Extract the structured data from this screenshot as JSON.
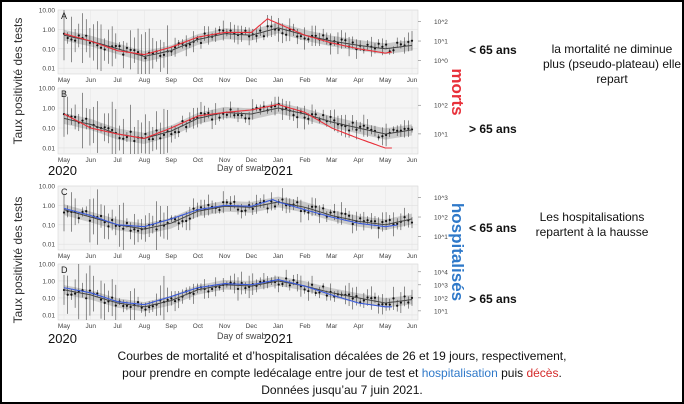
{
  "ylabel_top": "Taux positivité des tests",
  "ylabel_bottom": "Taux positivité des tests",
  "xtitle": "Day of swab",
  "years": {
    "y2020": "2020",
    "y2021": "2021"
  },
  "months": [
    "May",
    "Jun",
    "Jul",
    "Aug",
    "Sep",
    "Oct",
    "Nov",
    "Dec",
    "Jan",
    "Feb",
    "Mar",
    "Apr",
    "May",
    "Jun"
  ],
  "label_morts": "morts",
  "label_hosp": "hospitalisés",
  "age_under": "< 65 ans",
  "age_over": "> 65 ans",
  "note_mortalite": "la mortalité ne diminue plus (pseudo-plateau) elle repart",
  "note_hosp": "Les hospitalisations repartent à la hausse",
  "caption": {
    "line1": "Courbes de mortalité et d’hospitalisation décalées de 26 et 19 jours, respectivement,",
    "line2_pre": "pour prendre en compte ledécalage entre jour de test et ",
    "line2_blue": "hospitalisation",
    "line2_mid": " puis ",
    "line2_red": "décès",
    "line2_end": ".",
    "line3": "Données jusqu’au 7 juin 2021."
  },
  "colors": {
    "mortality": "#e8303a",
    "hospital": "#3b5bdb",
    "morts_label": "#e8303a",
    "hosp_label": "#2f79c9",
    "smooth": "#444444",
    "points": "#111111"
  },
  "chart_data": [
    {
      "panel": "A",
      "type": "line",
      "ylabel": "Taux positivité des tests",
      "y_scale": "log",
      "ylim": [
        0.005,
        10
      ],
      "yticks": [
        "0.01",
        "0.10",
        "1.00",
        "10.00"
      ],
      "right_ticks": [
        "10^0",
        "10^1",
        "10^2"
      ],
      "months": [
        "May",
        "Jun",
        "Jul",
        "Aug",
        "Sep",
        "Oct",
        "Nov",
        "Dec",
        "Jan",
        "Feb",
        "Mar",
        "Apr",
        "May",
        "Jun"
      ],
      "series": [
        {
          "kind": "positivity",
          "x": [
            0,
            1,
            2,
            3,
            4,
            5,
            6,
            7,
            8,
            9,
            10,
            11,
            12,
            13
          ],
          "values": [
            0.5,
            0.25,
            0.1,
            0.04,
            0.08,
            0.3,
            0.6,
            0.5,
            1.2,
            0.5,
            0.25,
            0.15,
            0.1,
            0.15
          ]
        },
        {
          "kind": "mortality",
          "name": "morts",
          "x": [
            0,
            1,
            2,
            3,
            4,
            5,
            6,
            7,
            7.6,
            8,
            9,
            10,
            11,
            12,
            12.3
          ],
          "values": [
            0.6,
            0.25,
            0.08,
            0.05,
            0.12,
            0.4,
            0.7,
            0.7,
            3.5,
            2.0,
            0.5,
            0.2,
            0.1,
            0.06,
            0.07
          ]
        }
      ]
    },
    {
      "panel": "B",
      "type": "line",
      "ylabel": "Taux positivité des tests",
      "y_scale": "log",
      "ylim": [
        0.005,
        10
      ],
      "yticks": [
        "0.01",
        "0.10",
        "1.00",
        "10.00"
      ],
      "right_ticks": [
        "10^1",
        "10^2"
      ],
      "months": [
        "May",
        "Jun",
        "Jul",
        "Aug",
        "Sep",
        "Oct",
        "Nov",
        "Dec",
        "Jan",
        "Feb",
        "Mar",
        "Apr",
        "May",
        "Jun"
      ],
      "series": [
        {
          "kind": "positivity",
          "x": [
            0,
            1,
            2,
            3,
            4,
            5,
            6,
            7,
            8,
            9,
            10,
            11,
            12,
            13
          ],
          "values": [
            0.3,
            0.15,
            0.05,
            0.03,
            0.07,
            0.3,
            0.6,
            0.5,
            1.0,
            0.5,
            0.2,
            0.1,
            0.05,
            0.08
          ]
        },
        {
          "kind": "mortality",
          "name": "morts",
          "x": [
            0,
            1,
            2,
            3,
            4,
            5,
            6,
            7,
            8,
            9,
            10,
            11,
            12,
            12.3
          ],
          "values": [
            0.5,
            0.1,
            0.05,
            0.03,
            0.1,
            0.4,
            0.6,
            0.8,
            1.5,
            0.6,
            0.1,
            0.03,
            0.01,
            0.01
          ]
        }
      ]
    },
    {
      "panel": "C",
      "type": "line",
      "ylabel": "Taux positivité des tests",
      "y_scale": "log",
      "ylim": [
        0.005,
        10
      ],
      "yticks": [
        "0.01",
        "0.10",
        "1.00",
        "10.00"
      ],
      "right_ticks": [
        "10^1",
        "10^2",
        "10^3"
      ],
      "months": [
        "May",
        "Jun",
        "Jul",
        "Aug",
        "Sep",
        "Oct",
        "Nov",
        "Dec",
        "Jan",
        "Feb",
        "Mar",
        "Apr",
        "May",
        "Jun"
      ],
      "series": [
        {
          "kind": "positivity",
          "x": [
            0,
            1,
            2,
            3,
            4,
            5,
            6,
            7,
            8,
            9,
            10,
            11,
            12,
            13
          ],
          "values": [
            0.6,
            0.25,
            0.1,
            0.06,
            0.12,
            0.5,
            0.9,
            0.8,
            1.5,
            0.8,
            0.3,
            0.15,
            0.1,
            0.2
          ]
        },
        {
          "kind": "hospitalisation",
          "name": "hospitalisés",
          "x": [
            0,
            1,
            2,
            3,
            4,
            5,
            6,
            7,
            7.8,
            8,
            9,
            10,
            11,
            12,
            12.5
          ],
          "values": [
            0.7,
            0.3,
            0.1,
            0.08,
            0.2,
            0.6,
            1.0,
            0.9,
            2.0,
            1.5,
            0.6,
            0.25,
            0.12,
            0.08,
            0.1
          ]
        }
      ]
    },
    {
      "panel": "D",
      "type": "line",
      "ylabel": "Taux positivité des tests",
      "y_scale": "log",
      "ylim": [
        0.005,
        10
      ],
      "yticks": [
        "0.01",
        "0.10",
        "1.00",
        "10.00"
      ],
      "right_ticks": [
        "10^1",
        "10^2",
        "10^3",
        "10^4"
      ],
      "months": [
        "May",
        "Jun",
        "Jul",
        "Aug",
        "Sep",
        "Oct",
        "Nov",
        "Dec",
        "Jan",
        "Feb",
        "Mar",
        "Apr",
        "May",
        "Jun"
      ],
      "series": [
        {
          "kind": "positivity",
          "x": [
            0,
            1,
            2,
            3,
            4,
            5,
            6,
            7,
            8,
            9,
            10,
            11,
            12,
            13
          ],
          "values": [
            0.3,
            0.15,
            0.05,
            0.03,
            0.07,
            0.3,
            0.6,
            0.5,
            1.0,
            0.5,
            0.2,
            0.1,
            0.05,
            0.08
          ]
        },
        {
          "kind": "hospitalisation",
          "name": "hospitalisés",
          "x": [
            0,
            1,
            2,
            3,
            4,
            5,
            6,
            7,
            8,
            9,
            10,
            11,
            12,
            12.3
          ],
          "values": [
            0.4,
            0.2,
            0.06,
            0.04,
            0.12,
            0.4,
            0.7,
            0.6,
            1.2,
            0.5,
            0.15,
            0.05,
            0.03,
            0.03
          ]
        }
      ]
    }
  ]
}
